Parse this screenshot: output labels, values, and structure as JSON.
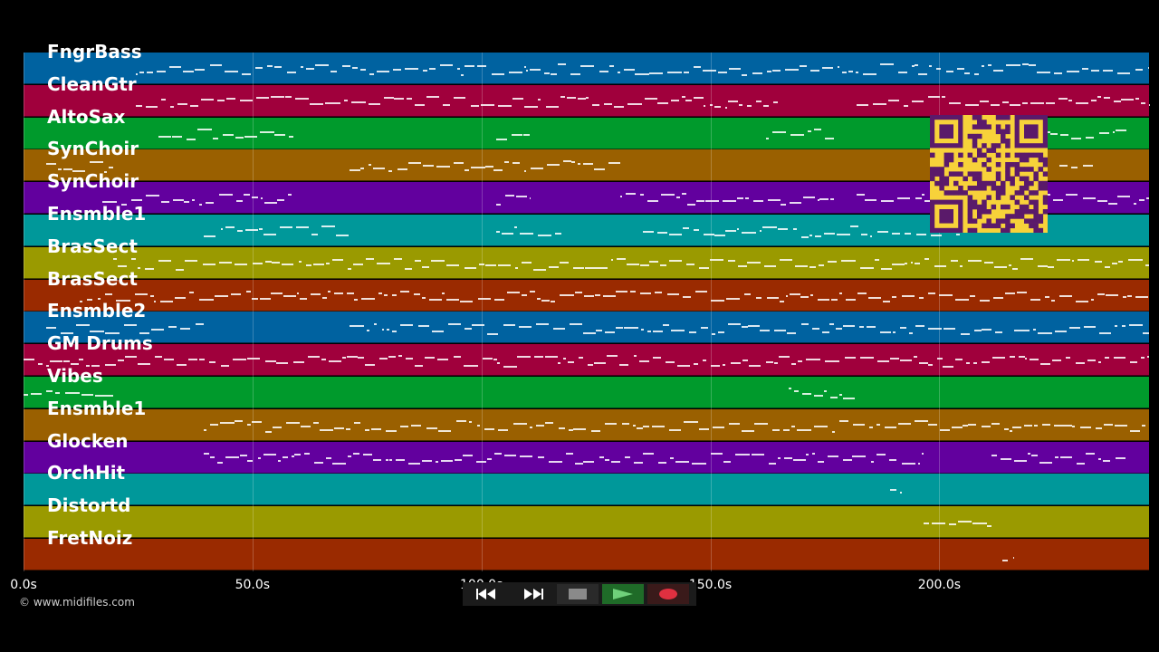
{
  "tracks": [
    {
      "name": "FngrBass",
      "color": "#0062a0"
    },
    {
      "name": "CleanGtr",
      "color": "#a0003c"
    },
    {
      "name": "AltoSax",
      "color": "#009a2c"
    },
    {
      "name": "SynChoir",
      "color": "#9a6000"
    },
    {
      "name": "SynChoir",
      "color": "#62009e"
    },
    {
      "name": "Ensmble1",
      "color": "#00989a"
    },
    {
      "name": "BrasSect",
      "color": "#9a9a00"
    },
    {
      "name": "BrasSect",
      "color": "#9a2a00"
    },
    {
      "name": "Ensmble2",
      "color": "#0062a0"
    },
    {
      "name": "GM Drums",
      "color": "#a0003c"
    },
    {
      "name": "Vibes",
      "color": "#009a2c"
    },
    {
      "name": "Ensmble1",
      "color": "#9a6000"
    },
    {
      "name": "Glocken",
      "color": "#62009e"
    },
    {
      "name": "OrchHit",
      "color": "#00989a"
    },
    {
      "name": "Distortd",
      "color": "#9a9a00"
    },
    {
      "name": "FretNoiz",
      "color": "#9a2a00"
    }
  ],
  "timeline": {
    "ticks": [
      "0.0s",
      "50.0s",
      "100.0s",
      "150.0s",
      "200.0s"
    ],
    "tick_seconds": [
      0,
      50,
      100,
      150,
      200
    ],
    "duration_seconds": 245.8
  },
  "copyright": "© www.midifiles.com",
  "controls": {
    "rewind": "rewind-icon",
    "fast_forward": "fast-forward-icon",
    "stop": "stop-icon",
    "play": "play-icon",
    "record": "record-icon"
  },
  "colors": {
    "background": "#000000",
    "qr_background": "#f7d23a",
    "qr_foreground": "#5a1a6a",
    "play_active": "#1f6b28",
    "record_red": "#e03040"
  }
}
